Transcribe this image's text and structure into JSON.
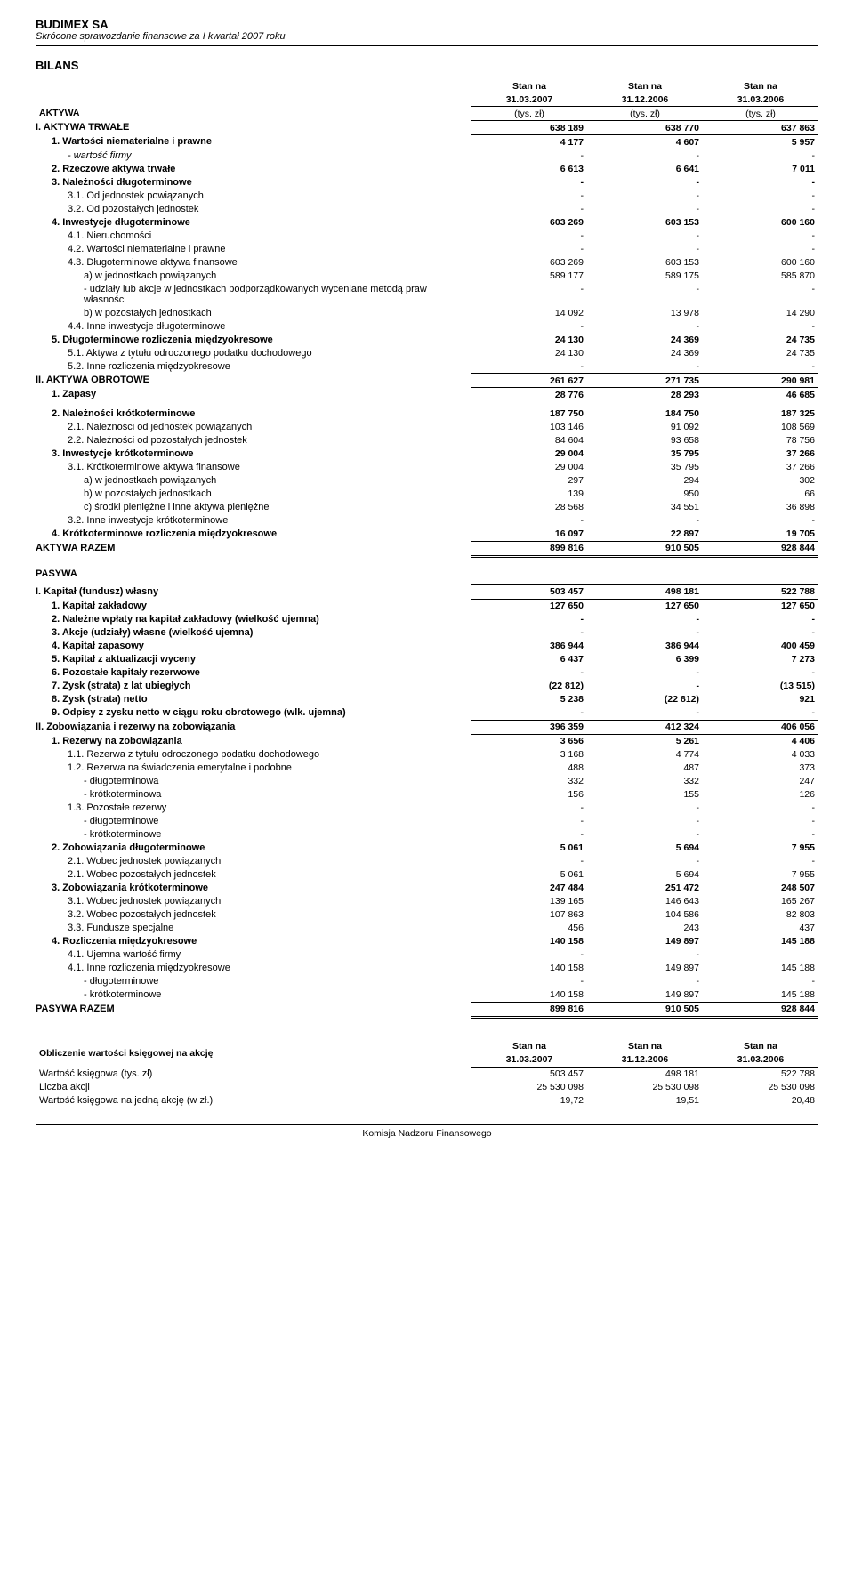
{
  "header": {
    "company": "BUDIMEX SA",
    "subtitle": "Skrócone sprawozdanie finansowe za I kwartał 2007 roku",
    "section": "BILANS"
  },
  "columns": {
    "c1_line1": "Stan na",
    "c1_line2": "31.03.2007",
    "c2_line1": "Stan na",
    "c2_line2": "31.12.2006",
    "c3_line1": "Stan na",
    "c3_line2": "31.03.2006",
    "unit": "(tys. zł)"
  },
  "aktywa_label": "AKTYWA",
  "pasywa_label": "PASYWA",
  "rows_aktywa": [
    {
      "l": "I. AKTYWA TRWAŁE",
      "c1": "638 189",
      "c2": "638 770",
      "c3": "637 863",
      "ind": 0,
      "bold": true,
      "box": true
    },
    {
      "l": "1. Wartości niematerialne i prawne",
      "c1": "4 177",
      "c2": "4 607",
      "c3": "5 957",
      "ind": 1,
      "bold": true
    },
    {
      "l": "- wartość firmy",
      "c1": "-",
      "c2": "-",
      "c3": "-",
      "ind": 2,
      "italic": true
    },
    {
      "l": "2. Rzeczowe aktywa trwałe",
      "c1": "6 613",
      "c2": "6 641",
      "c3": "7 011",
      "ind": 1,
      "bold": true
    },
    {
      "l": "3. Należności długoterminowe",
      "c1": "-",
      "c2": "-",
      "c3": "-",
      "ind": 1,
      "bold": true
    },
    {
      "l": "3.1. Od jednostek powiązanych",
      "c1": "-",
      "c2": "-",
      "c3": "-",
      "ind": 2
    },
    {
      "l": "3.2. Od pozostałych jednostek",
      "c1": "-",
      "c2": "-",
      "c3": "-",
      "ind": 2
    },
    {
      "l": "4. Inwestycje długoterminowe",
      "c1": "603 269",
      "c2": "603 153",
      "c3": "600 160",
      "ind": 1,
      "bold": true
    },
    {
      "l": "4.1. Nieruchomości",
      "c1": "-",
      "c2": "-",
      "c3": "-",
      "ind": 2
    },
    {
      "l": "4.2. Wartości niematerialne i prawne",
      "c1": "-",
      "c2": "-",
      "c3": "-",
      "ind": 2
    },
    {
      "l": "4.3. Długoterminowe aktywa finansowe",
      "c1": "603 269",
      "c2": "603 153",
      "c3": "600 160",
      "ind": 2
    },
    {
      "l": "a) w jednostkach powiązanych",
      "c1": "589 177",
      "c2": "589 175",
      "c3": "585 870",
      "ind": 3
    },
    {
      "l": "- udziały lub akcje w jednostkach podporządkowanych wyceniane metodą praw własności",
      "c1": "-",
      "c2": "-",
      "c3": "-",
      "ind": 3
    },
    {
      "l": "b) w pozostałych jednostkach",
      "c1": "14 092",
      "c2": "13 978",
      "c3": "14 290",
      "ind": 3
    },
    {
      "l": "4.4. Inne inwestycje długoterminowe",
      "c1": "-",
      "c2": "-",
      "c3": "-",
      "ind": 2
    },
    {
      "l": "5. Długoterminowe rozliczenia międzyokresowe",
      "c1": "24 130",
      "c2": "24 369",
      "c3": "24 735",
      "ind": 1,
      "bold": true
    },
    {
      "l": "5.1. Aktywa z tytułu odroczonego podatku dochodowego",
      "c1": "24 130",
      "c2": "24 369",
      "c3": "24 735",
      "ind": 2
    },
    {
      "l": "5.2. Inne rozliczenia międzyokresowe",
      "c1": "-",
      "c2": "-",
      "c3": "-",
      "ind": 2
    },
    {
      "l": "II. AKTYWA OBROTOWE",
      "c1": "261 627",
      "c2": "271 735",
      "c3": "290 981",
      "ind": 0,
      "bold": true,
      "box": true
    },
    {
      "l": "1. Zapasy",
      "c1": "28 776",
      "c2": "28 293",
      "c3": "46 685",
      "ind": 1,
      "bold": true,
      "padtop": true
    },
    {
      "l": "2. Należności krótkoterminowe",
      "c1": "187 750",
      "c2": "184 750",
      "c3": "187 325",
      "ind": 1,
      "bold": true
    },
    {
      "l": "2.1. Należności od jednostek powiązanych",
      "c1": "103 146",
      "c2": "91 092",
      "c3": "108 569",
      "ind": 2
    },
    {
      "l": "2.2. Należności od pozostałych jednostek",
      "c1": "84 604",
      "c2": "93 658",
      "c3": "78 756",
      "ind": 2
    },
    {
      "l": "3. Inwestycje krótkoterminowe",
      "c1": "29 004",
      "c2": "35 795",
      "c3": "37 266",
      "ind": 1,
      "bold": true
    },
    {
      "l": "3.1. Krótkoterminowe aktywa finansowe",
      "c1": "29 004",
      "c2": "35 795",
      "c3": "37 266",
      "ind": 2
    },
    {
      "l": "a) w jednostkach powiązanych",
      "c1": "297",
      "c2": "294",
      "c3": "302",
      "ind": 3
    },
    {
      "l": "b) w pozostałych jednostkach",
      "c1": "139",
      "c2": "950",
      "c3": "66",
      "ind": 3
    },
    {
      "l": "c) środki pieniężne i inne aktywa pieniężne",
      "c1": "28 568",
      "c2": "34 551",
      "c3": "36 898",
      "ind": 3
    },
    {
      "l": "3.2. Inne inwestycje krótkoterminowe",
      "c1": "-",
      "c2": "-",
      "c3": "-",
      "ind": 2
    },
    {
      "l": "4. Krótkoterminowe rozliczenia międzyokresowe",
      "c1": "16 097",
      "c2": "22 897",
      "c3": "19 705",
      "ind": 1,
      "bold": true
    },
    {
      "l": "AKTYWA RAZEM",
      "c1": "899 816",
      "c2": "910 505",
      "c3": "928 844",
      "ind": 0,
      "bold": true,
      "dbl": true
    }
  ],
  "rows_pasywa": [
    {
      "l": "I. Kapitał (fundusz) własny",
      "c1": "503 457",
      "c2": "498 181",
      "c3": "522 788",
      "ind": 0,
      "bold": true,
      "box": true
    },
    {
      "l": "1. Kapitał zakładowy",
      "c1": "127 650",
      "c2": "127 650",
      "c3": "127 650",
      "ind": 1,
      "bold": true
    },
    {
      "l": "2. Należne wpłaty na kapitał zakładowy (wielkość ujemna)",
      "c1": "-",
      "c2": "-",
      "c3": "-",
      "ind": 1,
      "bold": true
    },
    {
      "l": "3. Akcje (udziały) własne (wielkość ujemna)",
      "c1": "-",
      "c2": "-",
      "c3": "-",
      "ind": 1,
      "bold": true
    },
    {
      "l": "4. Kapitał zapasowy",
      "c1": "386 944",
      "c2": "386 944",
      "c3": "400 459",
      "ind": 1,
      "bold": true
    },
    {
      "l": "5. Kapitał z aktualizacji wyceny",
      "c1": "6 437",
      "c2": "6 399",
      "c3": "7 273",
      "ind": 1,
      "bold": true
    },
    {
      "l": "6. Pozostałe kapitały rezerwowe",
      "c1": "-",
      "c2": "-",
      "c3": "-",
      "ind": 1,
      "bold": true
    },
    {
      "l": "7. Zysk (strata) z lat ubiegłych",
      "c1": "(22 812)",
      "c2": "-",
      "c3": "(13 515)",
      "ind": 1,
      "bold": true
    },
    {
      "l": "8. Zysk (strata) netto",
      "c1": "5 238",
      "c2": "(22 812)",
      "c3": "921",
      "ind": 1,
      "bold": true
    },
    {
      "l": "9. Odpisy z zysku netto w ciągu roku obrotowego (wlk. ujemna)",
      "c1": "-",
      "c2": "-",
      "c3": "-",
      "ind": 1,
      "bold": true
    },
    {
      "l": "II. Zobowiązania i rezerwy na zobowiązania",
      "c1": "396 359",
      "c2": "412 324",
      "c3": "406 056",
      "ind": 0,
      "bold": true,
      "box": true
    },
    {
      "l": "1. Rezerwy na zobowiązania",
      "c1": "3 656",
      "c2": "5 261",
      "c3": "4 406",
      "ind": 1,
      "bold": true
    },
    {
      "l": "1.1. Rezerwa z tytułu odroczonego podatku dochodowego",
      "c1": "3 168",
      "c2": "4 774",
      "c3": "4 033",
      "ind": 2
    },
    {
      "l": "1.2. Rezerwa na świadczenia emerytalne i podobne",
      "c1": "488",
      "c2": "487",
      "c3": "373",
      "ind": 2
    },
    {
      "l": "- długoterminowa",
      "c1": "332",
      "c2": "332",
      "c3": "247",
      "ind": 3
    },
    {
      "l": "- krótkoterminowa",
      "c1": "156",
      "c2": "155",
      "c3": "126",
      "ind": 3
    },
    {
      "l": "1.3. Pozostałe rezerwy",
      "c1": "-",
      "c2": "-",
      "c3": "-",
      "ind": 2
    },
    {
      "l": "- długoterminowe",
      "c1": "-",
      "c2": "-",
      "c3": "-",
      "ind": 3
    },
    {
      "l": "- krótkoterminowe",
      "c1": "-",
      "c2": "-",
      "c3": "-",
      "ind": 3
    },
    {
      "l": "2. Zobowiązania długoterminowe",
      "c1": "5 061",
      "c2": "5 694",
      "c3": "7 955",
      "ind": 1,
      "bold": true
    },
    {
      "l": "2.1. Wobec jednostek powiązanych",
      "c1": "-",
      "c2": "-",
      "c3": "-",
      "ind": 2
    },
    {
      "l": "2.1. Wobec pozostałych jednostek",
      "c1": "5 061",
      "c2": "5 694",
      "c3": "7 955",
      "ind": 2
    },
    {
      "l": "3. Zobowiązania krótkoterminowe",
      "c1": "247 484",
      "c2": "251 472",
      "c3": "248 507",
      "ind": 1,
      "bold": true
    },
    {
      "l": "3.1. Wobec jednostek powiązanych",
      "c1": "139 165",
      "c2": "146 643",
      "c3": "165 267",
      "ind": 2
    },
    {
      "l": "3.2. Wobec pozostałych jednostek",
      "c1": "107 863",
      "c2": "104 586",
      "c3": "82 803",
      "ind": 2
    },
    {
      "l": "3.3. Fundusze specjalne",
      "c1": "456",
      "c2": "243",
      "c3": "437",
      "ind": 2
    },
    {
      "l": "4. Rozliczenia międzyokresowe",
      "c1": "140 158",
      "c2": "149 897",
      "c3": "145 188",
      "ind": 1,
      "bold": true
    },
    {
      "l": "4.1. Ujemna wartość firmy",
      "c1": "-",
      "c2": "-",
      "c3": "",
      "ind": 2
    },
    {
      "l": "4.1. Inne rozliczenia międzyokresowe",
      "c1": "140 158",
      "c2": "149 897",
      "c3": "145 188",
      "ind": 2
    },
    {
      "l": "- długoterminowe",
      "c1": "-",
      "c2": "-",
      "c3": "-",
      "ind": 3
    },
    {
      "l": "- krótkoterminowe",
      "c1": "140 158",
      "c2": "149 897",
      "c3": "145 188",
      "ind": 3
    },
    {
      "l": "PASYWA RAZEM",
      "c1": "899 816",
      "c2": "910 505",
      "c3": "928 844",
      "ind": 0,
      "bold": true,
      "dbl": true
    }
  ],
  "book_value": {
    "title": "Obliczenie wartości księgowej na akcję",
    "rows": [
      {
        "l": "Wartość księgowa (tys. zł)",
        "c1": "503 457",
        "c2": "498 181",
        "c3": "522 788"
      },
      {
        "l": "Liczba akcji",
        "c1": "25 530 098",
        "c2": "25 530 098",
        "c3": "25 530 098"
      },
      {
        "l": "Wartość księgowa na jedną akcję (w zł.)",
        "c1": "19,72",
        "c2": "19,51",
        "c3": "20,48"
      }
    ]
  },
  "footer": "Komisja Nadzoru Finansowego"
}
